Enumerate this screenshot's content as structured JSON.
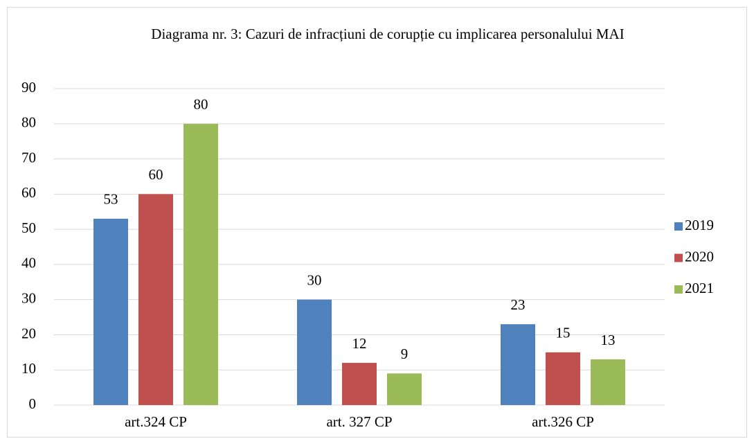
{
  "chart_data": {
    "type": "bar",
    "title": "Diagrama nr. 3: Cazuri de infracțiuni de corupție cu implicarea personalului MAI",
    "categories": [
      "art.324 CP",
      "art. 327 CP",
      "art.326 CP"
    ],
    "series": [
      {
        "name": "2019",
        "color": "#4f81bd",
        "values": [
          53,
          30,
          23
        ]
      },
      {
        "name": "2020",
        "color": "#c0504d",
        "values": [
          60,
          12,
          15
        ]
      },
      {
        "name": "2021",
        "color": "#9bbb59",
        "values": [
          80,
          9,
          13
        ]
      }
    ],
    "ylim": [
      0,
      90
    ],
    "yticks": [
      0,
      10,
      20,
      30,
      40,
      50,
      60,
      70,
      80,
      90
    ],
    "grid": true,
    "legend": "right",
    "data_labels": true
  }
}
